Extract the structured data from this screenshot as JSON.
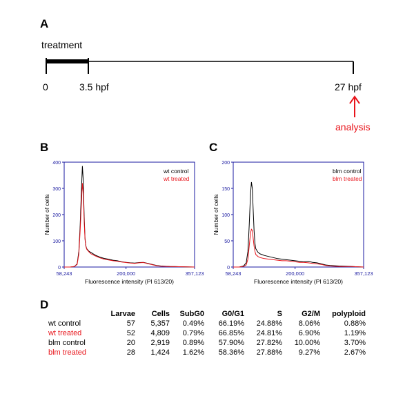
{
  "panel_a": {
    "label": "A",
    "treatment_label": "treatment",
    "tick_start": "0",
    "tick_treatment_end": "3.5 hpf",
    "tick_end": "27 hpf",
    "analysis_label": "analysis"
  },
  "panel_d": {
    "label": "D",
    "columns": [
      "Larvae",
      "Cells",
      "SubG0",
      "G0/G1",
      "S",
      "G2/M",
      "polyploid"
    ],
    "rows": [
      {
        "name": "wt control",
        "color": "#000000",
        "values": [
          "57",
          "5,357",
          "0.49%",
          "66.19%",
          "24.88%",
          "8.06%",
          "0.88%"
        ]
      },
      {
        "name": "wt treated",
        "color": "#e8141b",
        "values": [
          "52",
          "4,809",
          "0.79%",
          "66.85%",
          "24.81%",
          "6.90%",
          "1.19%"
        ]
      },
      {
        "name": "blm control",
        "color": "#000000",
        "values": [
          "20",
          "2,919",
          "0.89%",
          "57.90%",
          "27.82%",
          "10.00%",
          "3.70%"
        ]
      },
      {
        "name": "blm treated",
        "color": "#e8141b",
        "values": [
          "28",
          "1,424",
          "1.62%",
          "58.36%",
          "27.88%",
          "9.27%",
          "2.67%"
        ]
      }
    ]
  },
  "colors": {
    "control": "#000000",
    "treated": "#e8141b",
    "axis": "#1a1aa0"
  },
  "chart_data": [
    {
      "panel": "B",
      "type": "line",
      "xlabel": "Fluorescence intensity (PI 613/20)",
      "ylabel": "Number of cells",
      "x_ticks": [
        "58,243",
        "200,000",
        "357,123"
      ],
      "y_ticks": [
        "0",
        "100",
        "200",
        "300",
        "400"
      ],
      "xlim": [
        58243,
        357123
      ],
      "ylim": [
        0,
        400
      ],
      "legend_position": "top-right",
      "series": [
        {
          "name": "wt control",
          "color": "#000000",
          "x": [
            58243,
            72000,
            82000,
            88000,
            92000,
            95000,
            98000,
            100000,
            102000,
            104000,
            106000,
            108000,
            110000,
            115000,
            120000,
            130000,
            140000,
            150000,
            160000,
            170000,
            180000,
            190000,
            200000,
            210000,
            220000,
            230000,
            240000,
            250000,
            260000,
            270000,
            280000,
            300000,
            330000,
            357123
          ],
          "y": [
            0,
            0,
            2,
            12,
            60,
            160,
            300,
            385,
            330,
            200,
            110,
            80,
            70,
            60,
            55,
            45,
            38,
            33,
            30,
            26,
            24,
            20,
            18,
            16,
            15,
            17,
            18,
            14,
            10,
            6,
            4,
            2,
            1,
            0
          ]
        },
        {
          "name": "wt treated",
          "color": "#e8141b",
          "x": [
            58243,
            72000,
            82000,
            88000,
            92000,
            95000,
            98000,
            100000,
            102000,
            104000,
            106000,
            108000,
            110000,
            115000,
            120000,
            130000,
            140000,
            150000,
            160000,
            170000,
            180000,
            190000,
            200000,
            210000,
            220000,
            230000,
            240000,
            250000,
            260000,
            270000,
            280000,
            300000,
            330000,
            357123
          ],
          "y": [
            0,
            0,
            2,
            10,
            50,
            140,
            250,
            320,
            280,
            180,
            105,
            78,
            68,
            58,
            50,
            42,
            35,
            30,
            27,
            24,
            22,
            19,
            17,
            15,
            14,
            16,
            17,
            13,
            9,
            5,
            3,
            2,
            1,
            0
          ]
        }
      ]
    },
    {
      "panel": "C",
      "type": "line",
      "xlabel": "Fluorescence intensity (PI 613/20)",
      "ylabel": "Number of cells",
      "x_ticks": [
        "58,243",
        "200,000",
        "357,123"
      ],
      "y_ticks": [
        "0",
        "50",
        "100",
        "150",
        "200"
      ],
      "xlim": [
        58243,
        357123
      ],
      "ylim": [
        0,
        200
      ],
      "legend_position": "top-right",
      "series": [
        {
          "name": "blm control",
          "color": "#000000",
          "x": [
            58243,
            72000,
            82000,
            88000,
            92000,
            95000,
            98000,
            100000,
            102000,
            104000,
            106000,
            108000,
            110000,
            115000,
            120000,
            130000,
            140000,
            150000,
            160000,
            170000,
            180000,
            190000,
            200000,
            210000,
            220000,
            230000,
            240000,
            250000,
            260000,
            270000,
            280000,
            300000,
            330000,
            357123
          ],
          "y": [
            0,
            0,
            2,
            8,
            30,
            80,
            140,
            162,
            150,
            110,
            70,
            45,
            35,
            28,
            25,
            22,
            20,
            18,
            16,
            15,
            14,
            13,
            12,
            11,
            10,
            11,
            9,
            8,
            6,
            4,
            3,
            2,
            1,
            0
          ]
        },
        {
          "name": "blm treated",
          "color": "#e8141b",
          "x": [
            58243,
            72000,
            82000,
            88000,
            92000,
            95000,
            98000,
            100000,
            102000,
            104000,
            106000,
            108000,
            110000,
            115000,
            120000,
            130000,
            140000,
            150000,
            160000,
            170000,
            180000,
            190000,
            200000,
            210000,
            220000,
            230000,
            240000,
            250000,
            260000,
            270000,
            280000,
            300000,
            330000,
            357123
          ],
          "y": [
            0,
            0,
            1,
            4,
            15,
            40,
            65,
            72,
            70,
            55,
            40,
            30,
            24,
            20,
            18,
            16,
            15,
            14,
            13,
            12,
            12,
            11,
            10,
            9,
            9,
            8,
            7,
            6,
            5,
            3,
            2,
            1,
            1,
            0
          ]
        }
      ]
    }
  ]
}
